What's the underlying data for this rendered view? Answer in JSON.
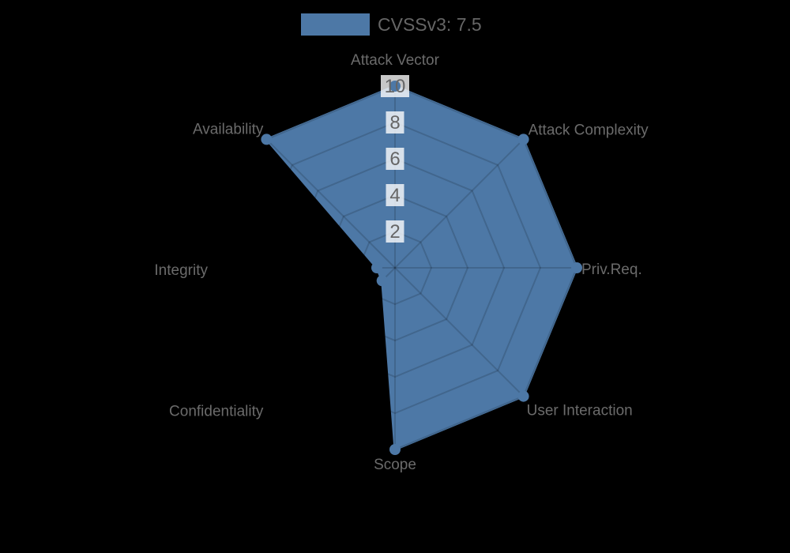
{
  "background_color": "#000000",
  "legend": {
    "label": "CVSSv3: 7.5",
    "swatch_color": "#4d78a6"
  },
  "chart_data": {
    "type": "radar",
    "title": "",
    "categories": [
      "Attack Vector",
      "Attack Complexity",
      "Priv.Req.",
      "User Interaction",
      "Scope",
      "Confidentiality",
      "Integrity",
      "Availability"
    ],
    "series": [
      {
        "name": "CVSSv3: 7.5",
        "values": [
          10,
          10,
          10,
          10,
          10,
          1,
          1,
          10
        ],
        "fill_color": "#4d78a6"
      }
    ],
    "ticks": [
      2,
      4,
      6,
      8,
      10
    ],
    "r_min": 0,
    "r_max": 10,
    "legend_position": "top",
    "grid": true,
    "grid_style": "spider-web",
    "grid_line_color": "rgba(0,0,0,0.15)",
    "tick_color": "#666666",
    "tick_backdrop_color": "rgba(255,255,255,0.78)",
    "label_color": "#6b6b6b"
  }
}
